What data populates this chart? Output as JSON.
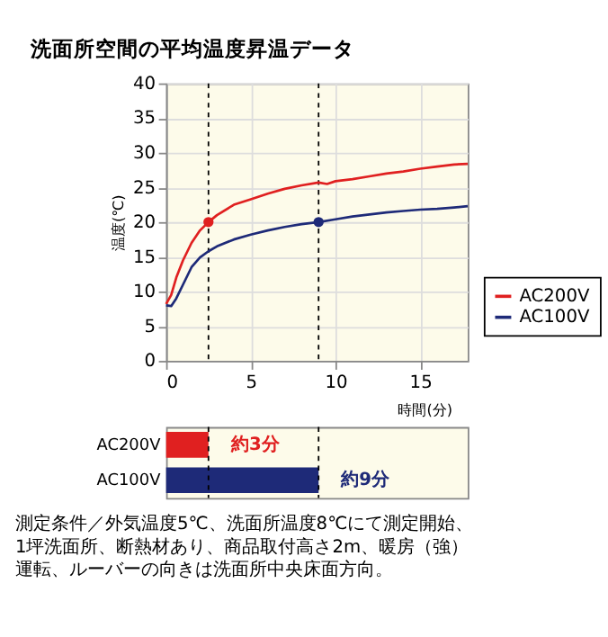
{
  "chart_data": [
    {
      "type": "line",
      "title": "洗面所空間の平均温度昇温データ",
      "xlabel": "時間(分)",
      "ylabel": "温度(℃)",
      "xlim": [
        0,
        17.8
      ],
      "xticks": [
        0,
        5,
        10,
        15
      ],
      "ylim": [
        0,
        40
      ],
      "yticks": [
        0,
        5,
        10,
        15,
        20,
        25,
        30,
        35,
        40
      ],
      "grid": true,
      "legend": "bottom right",
      "line_style": "solid",
      "series": [
        {
          "name": "AC200V",
          "color": "#e02020",
          "x": [
            0,
            0.3,
            0.6,
            1,
            1.5,
            2,
            2.5,
            3,
            4,
            5,
            6,
            7,
            8,
            9,
            9.5,
            10,
            11,
            12,
            13,
            14,
            15,
            16,
            17,
            17.8
          ],
          "values": [
            8.2,
            9.5,
            12,
            14.5,
            17,
            18.8,
            20,
            21,
            22.5,
            23.3,
            24.1,
            24.8,
            25.3,
            25.7,
            25.5,
            25.9,
            26.2,
            26.6,
            27,
            27.3,
            27.7,
            28,
            28.3,
            28.4
          ]
        },
        {
          "name": "AC100V",
          "color": "#1e2a78",
          "x": [
            0,
            0.3,
            0.6,
            1,
            1.5,
            2,
            2.5,
            3,
            4,
            5,
            6,
            7,
            8,
            9,
            10,
            11,
            12,
            13,
            14,
            15,
            16,
            17,
            17.8
          ],
          "values": [
            8,
            7.9,
            9,
            11,
            13.5,
            14.9,
            15.8,
            16.5,
            17.5,
            18.2,
            18.8,
            19.3,
            19.7,
            20,
            20.4,
            20.8,
            21.1,
            21.4,
            21.6,
            21.8,
            21.9,
            22.1,
            22.3
          ]
        },
        {
          "type": "scatter",
          "x": [
            2.5,
            9
          ],
          "values": [
            20,
            20
          ],
          "colors": [
            "#e02020",
            "#1e2a78"
          ]
        }
      ],
      "ref_lines": [
        {
          "axis": "x",
          "value": 2.5,
          "line_style": "dashed",
          "color": "#000000"
        },
        {
          "axis": "x",
          "value": 9,
          "line_style": "dashed",
          "color": "#000000"
        }
      ]
    },
    {
      "type": "bar",
      "orientation": "horizontal",
      "categories": [
        "AC200V",
        "AC100V"
      ],
      "values": [
        2.5,
        9
      ],
      "colors": [
        "#e02020",
        "#1e2a78"
      ],
      "value_labels": [
        "約3分",
        "約9分"
      ],
      "xlim": [
        0,
        17.8
      ],
      "tick_labels": "y",
      "ref_lines": [
        {
          "axis": "x",
          "value": 2.5,
          "line_style": "dashed",
          "color": "#000000"
        },
        {
          "axis": "x",
          "value": 9,
          "line_style": "dashed",
          "color": "#000000"
        }
      ],
      "annotations": [
        "測定条件／外気温度5℃、洗面所温度8℃にて測定開始、",
        "1坪洗面所、断熱材あり、商品取付高さ2m、暖房（強）",
        "運転、ルーバーの向きは洗面所中央床面方向。"
      ]
    }
  ]
}
